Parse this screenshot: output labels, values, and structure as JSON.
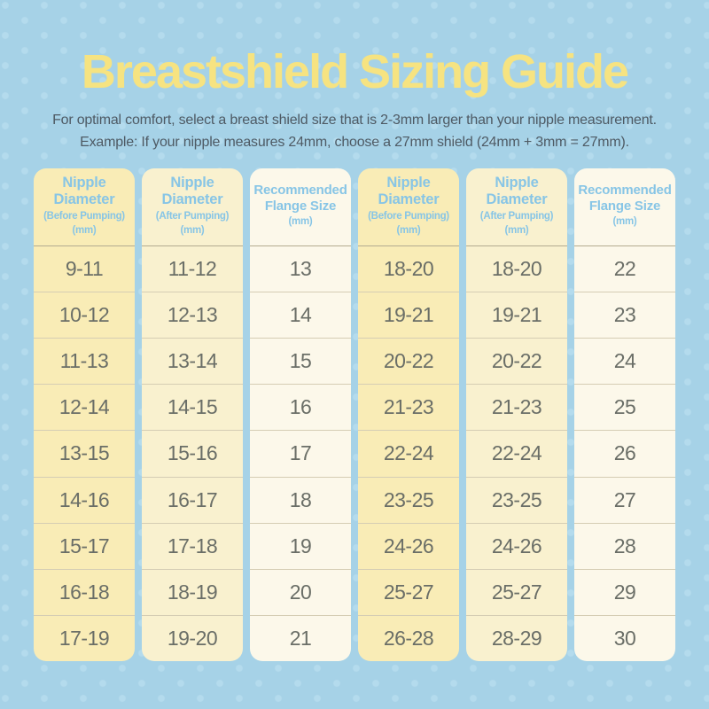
{
  "page": {
    "title": "Breastshield Sizing Guide",
    "subtitle_line1": "For optimal comfort, select a breast shield size that is 2-3mm larger than your nipple measurement.",
    "subtitle_line2": "Example: If your nipple measures 24mm, choose a 27mm shield (24mm + 3mm = 27mm)."
  },
  "colors": {
    "background": "#a6d2e7",
    "dot": "#b4dbed",
    "title_text": "#f6e381",
    "subtitle_text": "#4e5a64",
    "header_text": "#87c5e6",
    "cell_text": "#6a6e67",
    "column_before": "#f9ecb6",
    "column_after": "#f9f1cf",
    "column_flange": "#fcf8ea",
    "divider": "#d5cdb4",
    "divider_strong": "#b3ab90"
  },
  "chart_data": {
    "type": "table",
    "title": "Breastshield Sizing Guide",
    "column_headers": [
      {
        "title": "Nipple Diameter",
        "sub": "(Before Pumping)",
        "unit": "(mm)",
        "variant": "before"
      },
      {
        "title": "Nipple Diameter",
        "sub": "(After Pumping)",
        "unit": "(mm)",
        "variant": "after"
      },
      {
        "title": "Recommended Flange Size",
        "sub": "",
        "unit": "(mm)",
        "variant": "flange"
      }
    ],
    "tables": [
      {
        "name": "left",
        "rows": [
          [
            "9-11",
            "11-12",
            "13"
          ],
          [
            "10-12",
            "12-13",
            "14"
          ],
          [
            "11-13",
            "13-14",
            "15"
          ],
          [
            "12-14",
            "14-15",
            "16"
          ],
          [
            "13-15",
            "15-16",
            "17"
          ],
          [
            "14-16",
            "16-17",
            "18"
          ],
          [
            "15-17",
            "17-18",
            "19"
          ],
          [
            "16-18",
            "18-19",
            "20"
          ],
          [
            "17-19",
            "19-20",
            "21"
          ]
        ]
      },
      {
        "name": "right",
        "rows": [
          [
            "18-20",
            "18-20",
            "22"
          ],
          [
            "19-21",
            "19-21",
            "23"
          ],
          [
            "20-22",
            "20-22",
            "24"
          ],
          [
            "21-23",
            "21-23",
            "25"
          ],
          [
            "22-24",
            "22-24",
            "26"
          ],
          [
            "23-25",
            "23-25",
            "27"
          ],
          [
            "24-26",
            "24-26",
            "28"
          ],
          [
            "25-27",
            "25-27",
            "29"
          ],
          [
            "26-28",
            "28-29",
            "30"
          ]
        ]
      }
    ]
  }
}
